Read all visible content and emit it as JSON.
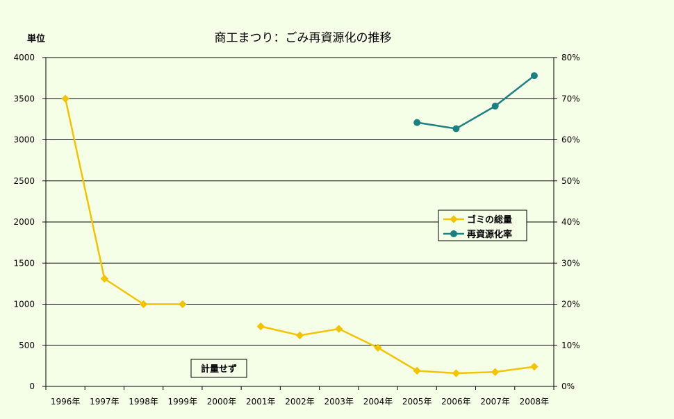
{
  "chart_data": {
    "type": "line",
    "title": "商工まつり：ごみ再資源化の推移",
    "y_unit_label": "単位",
    "categories": [
      "1996年",
      "1997年",
      "1998年",
      "1999年",
      "2000年",
      "2001年",
      "2002年",
      "2003年",
      "2004年",
      "2005年",
      "2006年",
      "2007年",
      "2008年"
    ],
    "y_left": {
      "ylim": [
        0,
        4000
      ],
      "ticks": [
        "0",
        "500",
        "1000",
        "1500",
        "2000",
        "2500",
        "3000",
        "3500",
        "4000"
      ]
    },
    "y_right": {
      "ylim": [
        0,
        80
      ],
      "ticks": [
        "0%",
        "10%",
        "20%",
        "30%",
        "40%",
        "50%",
        "60%",
        "70%",
        "80%"
      ]
    },
    "series": [
      {
        "name": "ゴミの総量",
        "axis": "left",
        "color": "#f2c400",
        "marker": "diamond",
        "values": [
          3500,
          1310,
          1000,
          1000,
          null,
          730,
          620,
          700,
          470,
          190,
          160,
          175,
          240
        ]
      },
      {
        "name": "再資源化率",
        "axis": "right",
        "color": "#1a8080",
        "marker": "circle",
        "values": [
          null,
          null,
          null,
          null,
          null,
          null,
          null,
          null,
          null,
          64.2,
          62.7,
          68.2,
          75.6
        ]
      }
    ],
    "annotation": "計量せず",
    "grid": true,
    "legend_position": "right"
  }
}
